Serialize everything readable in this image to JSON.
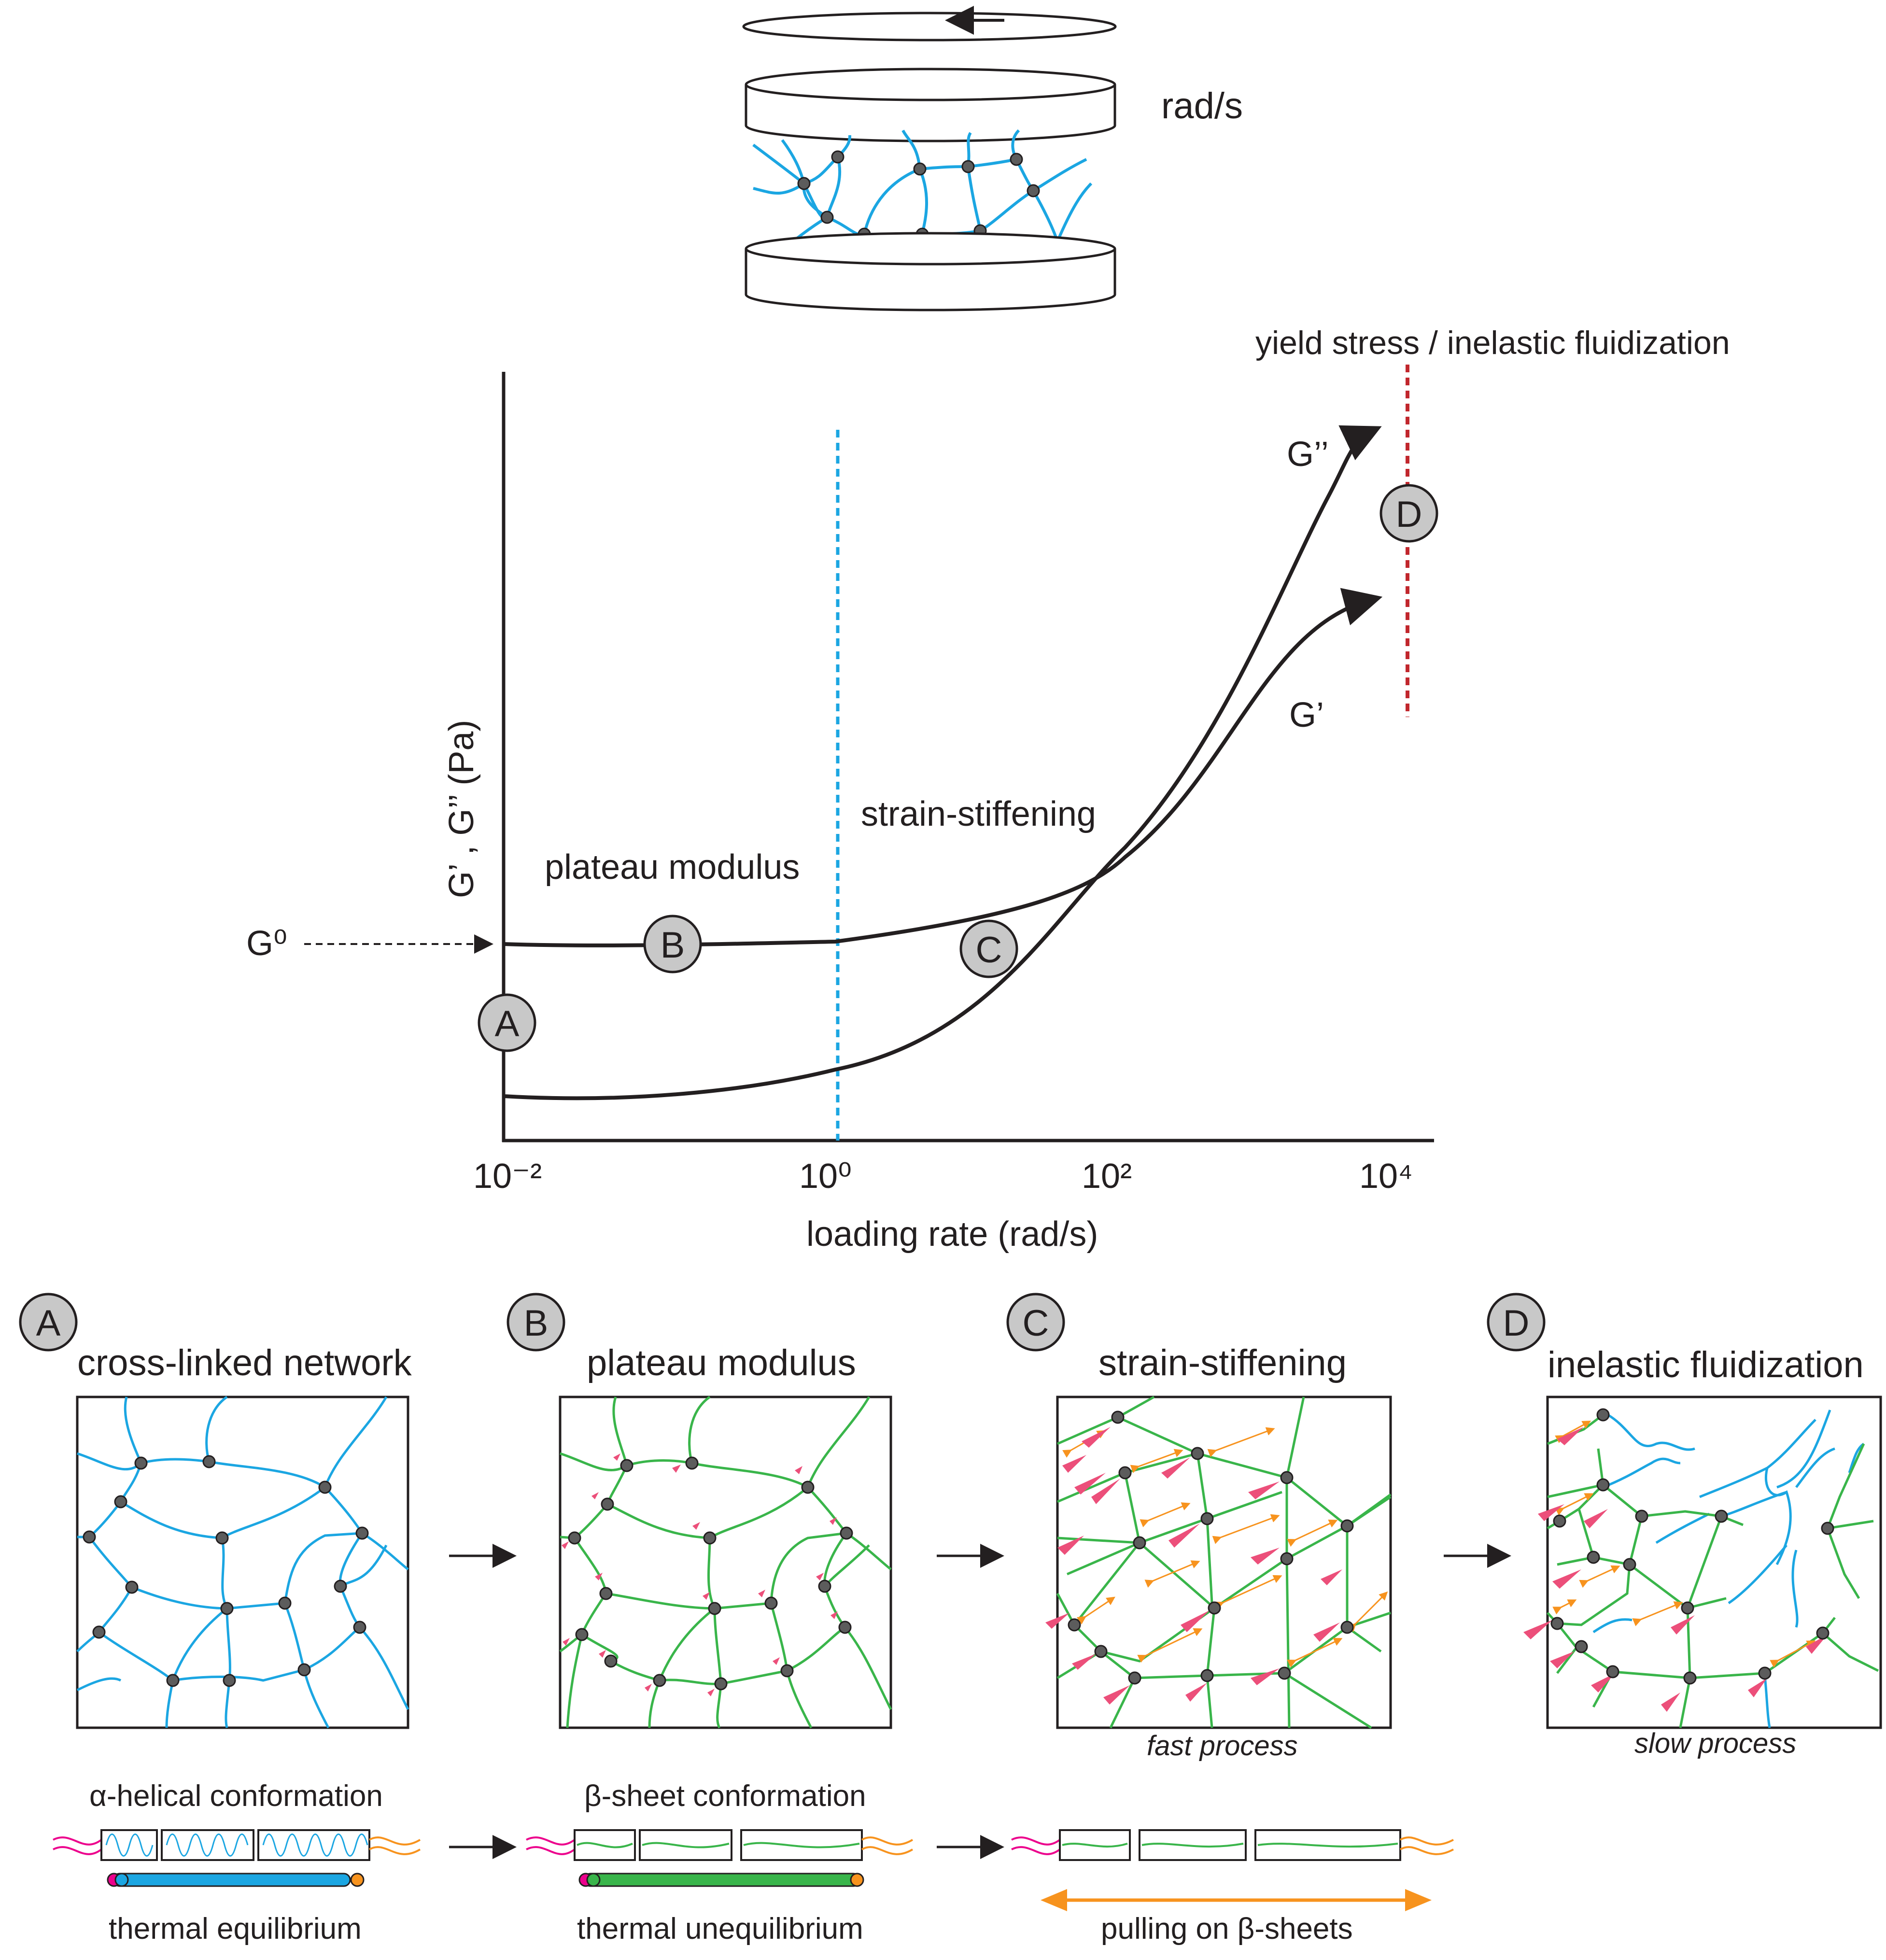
{
  "rheometer": {
    "rate_label": "rad/s"
  },
  "graph": {
    "y_axis_label": "G’ , G’’ (Pa)",
    "x_axis_label": "loading rate (rad/s)",
    "x_ticks": [
      "10⁻²",
      "10⁰",
      "10²",
      "10⁴"
    ],
    "g0_label": "G⁰",
    "yield_label": "yield stress / inelastic fluidization",
    "region_plateau": "plateau modulus",
    "region_stiffening": "strain-stiffening",
    "curve_g_double_prime": "G’’",
    "curve_g_prime": "G’",
    "markers": [
      "A",
      "B",
      "C",
      "D"
    ],
    "colors": {
      "boundary_plateau": "#1ba6e2",
      "boundary_yield": "#c1272d",
      "curve": "#231f20"
    }
  },
  "panels": [
    {
      "letter": "A",
      "title": "cross-linked network",
      "caption": ""
    },
    {
      "letter": "B",
      "title": "plateau modulus",
      "caption": ""
    },
    {
      "letter": "C",
      "title": "strain-stiffening",
      "caption": "fast process"
    },
    {
      "letter": "D",
      "title": "inelastic fluidization",
      "caption": "slow process"
    }
  ],
  "conformations": [
    {
      "top": "α-helical conformation",
      "bottom": "thermal equilibrium"
    },
    {
      "top": "β-sheet conformation",
      "bottom": "thermal unequilibrium"
    },
    {
      "top": "",
      "bottom": "pulling on β-sheets"
    }
  ],
  "palette": {
    "fiber_relaxed": "#1ba6e2",
    "fiber_stretched": "#39b54a",
    "crosslink": "#5c5c5c",
    "force_arrow": "#ec4f7a",
    "strain_arrow": "#f7931e",
    "terminal_magenta": "#ec008c"
  }
}
